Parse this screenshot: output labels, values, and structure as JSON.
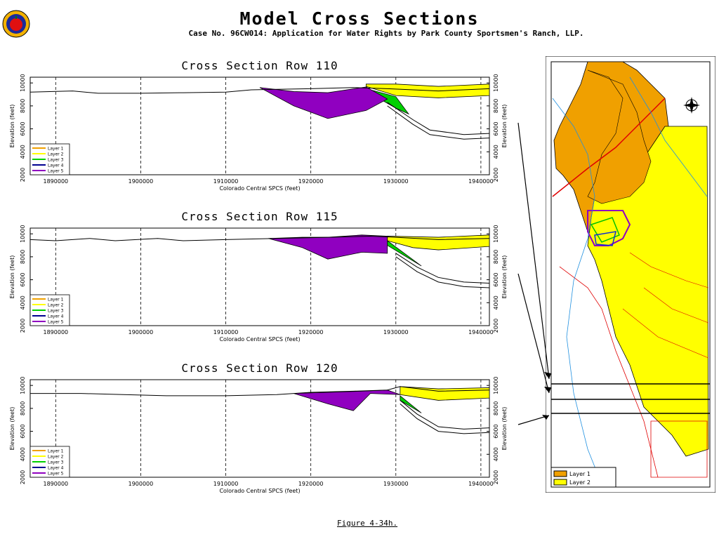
{
  "page": {
    "title": "Model Cross Sections",
    "subtitle": "Case No. 96CW014: Application for Water Rights by Park County Sportsmen's Ranch, LLP.",
    "caption": "Figure 4-34h."
  },
  "chart_data": [
    {
      "type": "area",
      "title": "Cross Section Row 110",
      "xlabel": "Colorado Central SPCS (feet)",
      "ylabel": "Elevation (feet)",
      "ylabel_right": "Elevation (feet)",
      "xlim": [
        1887000,
        1941000
      ],
      "ylim": [
        2000,
        10500
      ],
      "x_ticks": [
        1890000,
        1900000,
        1910000,
        1920000,
        1930000,
        1940000
      ],
      "y_ticks": [
        2000,
        4000,
        6000,
        8000,
        10000
      ],
      "legend": [
        "Layer 1",
        "Layer 2",
        "Layer 3",
        "Layer 4",
        "Layer 5"
      ],
      "legend_position": "lower-left",
      "colors": {
        "Layer 1": "#f0a000",
        "Layer 2": "#ffff00",
        "Layer 3": "#00d000",
        "Layer 4": "#000090",
        "Layer 5": "#9000c0"
      },
      "surface": [
        [
          1887000,
          9200
        ],
        [
          1892000,
          9300
        ],
        [
          1895000,
          9100
        ],
        [
          1900000,
          9100
        ],
        [
          1905000,
          9150
        ],
        [
          1910000,
          9200
        ],
        [
          1913000,
          9400
        ],
        [
          1920000,
          9500
        ],
        [
          1925000,
          9600
        ],
        [
          1929000,
          9500
        ],
        [
          1935000,
          9300
        ],
        [
          1941000,
          9500
        ]
      ],
      "layer5": {
        "top": [
          [
            1914000,
            9600
          ],
          [
            1918000,
            9250
          ],
          [
            1922000,
            9150
          ],
          [
            1926500,
            9650
          ],
          [
            1929000,
            8600
          ]
        ],
        "bottom": [
          [
            1914000,
            9600
          ],
          [
            1918000,
            8000
          ],
          [
            1922000,
            6900
          ],
          [
            1926500,
            7600
          ],
          [
            1929000,
            8600
          ]
        ]
      },
      "layer2": {
        "top": [
          [
            1926500,
            9900
          ],
          [
            1930000,
            9900
          ],
          [
            1935000,
            9700
          ],
          [
            1941000,
            9900
          ]
        ],
        "bottom": [
          [
            1926500,
            9700
          ],
          [
            1930000,
            8900
          ],
          [
            1935000,
            8700
          ],
          [
            1941000,
            8900
          ]
        ]
      },
      "layer3": {
        "top": [
          [
            1926500,
            9500
          ],
          [
            1930000,
            8800
          ],
          [
            1931500,
            7300
          ]
        ],
        "bottom": [
          [
            1926500,
            9300
          ],
          [
            1930000,
            7800
          ],
          [
            1931500,
            7300
          ]
        ]
      },
      "base": [
        [
          1929000,
          8300
        ],
        [
          1932000,
          6800
        ],
        [
          1934000,
          5900
        ],
        [
          1938000,
          5500
        ],
        [
          1941000,
          5600
        ]
      ],
      "base2": [
        [
          1929000,
          8000
        ],
        [
          1932000,
          6400
        ],
        [
          1934000,
          5500
        ],
        [
          1938000,
          5100
        ],
        [
          1941000,
          5200
        ]
      ]
    },
    {
      "type": "area",
      "title": "Cross Section Row 115",
      "xlabel": "Colorado Central SPCS (feet)",
      "ylabel": "Elevation (feet)",
      "ylabel_right": "Elevation (feet)",
      "xlim": [
        1887000,
        1941000
      ],
      "ylim": [
        2000,
        10500
      ],
      "x_ticks": [
        1890000,
        1900000,
        1910000,
        1920000,
        1930000,
        1940000
      ],
      "y_ticks": [
        2000,
        4000,
        6000,
        8000,
        10000
      ],
      "legend": [
        "Layer 1",
        "Layer 2",
        "Layer 3",
        "Layer 4",
        "Layer 5"
      ],
      "legend_position": "lower-left",
      "colors": {
        "Layer 1": "#f0a000",
        "Layer 2": "#ffff00",
        "Layer 3": "#00d000",
        "Layer 4": "#000090",
        "Layer 5": "#9000c0"
      },
      "surface": [
        [
          1887000,
          9500
        ],
        [
          1890000,
          9400
        ],
        [
          1894000,
          9600
        ],
        [
          1897000,
          9400
        ],
        [
          1902000,
          9600
        ],
        [
          1905000,
          9400
        ],
        [
          1910000,
          9500
        ],
        [
          1916000,
          9600
        ],
        [
          1922000,
          9700
        ],
        [
          1927000,
          9800
        ],
        [
          1930000,
          9700
        ],
        [
          1935000,
          9500
        ],
        [
          1941000,
          9600
        ]
      ],
      "layer5": {
        "top": [
          [
            1915000,
            9600
          ],
          [
            1919000,
            9700
          ],
          [
            1922000,
            9700
          ],
          [
            1926000,
            9900
          ],
          [
            1929000,
            9800
          ]
        ],
        "bottom": [
          [
            1915000,
            9600
          ],
          [
            1919000,
            8800
          ],
          [
            1922000,
            7800
          ],
          [
            1926000,
            8400
          ],
          [
            1929000,
            8300
          ]
        ]
      },
      "layer2": {
        "top": [
          [
            1929000,
            9800
          ],
          [
            1935000,
            9700
          ],
          [
            1941000,
            9900
          ]
        ],
        "bottom": [
          [
            1929000,
            9400
          ],
          [
            1932000,
            8800
          ],
          [
            1935000,
            8600
          ],
          [
            1941000,
            8900
          ]
        ]
      },
      "layer3": {
        "top": [
          [
            1929000,
            9400
          ],
          [
            1933000,
            7200
          ]
        ],
        "bottom": [
          [
            1929000,
            9000
          ],
          [
            1933000,
            7200
          ]
        ]
      },
      "base": [
        [
          1930000,
          8300
        ],
        [
          1932500,
          7100
        ],
        [
          1935000,
          6200
        ],
        [
          1938000,
          5800
        ],
        [
          1941000,
          5700
        ]
      ],
      "base2": [
        [
          1930000,
          8000
        ],
        [
          1932500,
          6700
        ],
        [
          1935000,
          5800
        ],
        [
          1938000,
          5400
        ],
        [
          1941000,
          5300
        ]
      ]
    },
    {
      "type": "area",
      "title": "Cross Section Row 120",
      "xlabel": "Colorado Central SPCS (feet)",
      "ylabel": "Elevation (feet)",
      "ylabel_right": "Elevation (feet)",
      "xlim": [
        1887000,
        1941000
      ],
      "ylim": [
        2000,
        10500
      ],
      "x_ticks": [
        1890000,
        1900000,
        1910000,
        1920000,
        1930000,
        1940000
      ],
      "y_ticks": [
        2000,
        4000,
        6000,
        8000,
        10000
      ],
      "legend": [
        "Layer 1",
        "Layer 2",
        "Layer 3",
        "Layer 4",
        "Layer 5"
      ],
      "legend_position": "lower-left",
      "colors": {
        "Layer 1": "#f0a000",
        "Layer 2": "#ffff00",
        "Layer 3": "#00d000",
        "Layer 4": "#000090",
        "Layer 5": "#9000c0"
      },
      "surface": [
        [
          1887000,
          9300
        ],
        [
          1893000,
          9300
        ],
        [
          1898000,
          9200
        ],
        [
          1903000,
          9100
        ],
        [
          1910000,
          9100
        ],
        [
          1916000,
          9200
        ],
        [
          1920000,
          9400
        ],
        [
          1925000,
          9500
        ],
        [
          1929000,
          9600
        ],
        [
          1930500,
          9900
        ],
        [
          1935000,
          9500
        ],
        [
          1941000,
          9600
        ]
      ],
      "layer5": {
        "top": [
          [
            1918000,
            9300
          ],
          [
            1922000,
            9400
          ],
          [
            1926000,
            9500
          ],
          [
            1929000,
            9600
          ],
          [
            1930500,
            9200
          ]
        ],
        "bottom": [
          [
            1918000,
            9300
          ],
          [
            1922000,
            8400
          ],
          [
            1925000,
            7800
          ],
          [
            1927000,
            9300
          ],
          [
            1930500,
            9200
          ]
        ]
      },
      "layer2": {
        "top": [
          [
            1930500,
            9900
          ],
          [
            1935000,
            9700
          ],
          [
            1941000,
            9800
          ]
        ],
        "bottom": [
          [
            1930500,
            9200
          ],
          [
            1935000,
            8700
          ],
          [
            1941000,
            8900
          ]
        ]
      },
      "layer3": {
        "top": [
          [
            1930500,
            9100
          ],
          [
            1933000,
            7600
          ]
        ],
        "bottom": [
          [
            1930500,
            8700
          ],
          [
            1933000,
            7600
          ]
        ]
      },
      "base": [
        [
          1930500,
          8700
        ],
        [
          1932500,
          7500
        ],
        [
          1935000,
          6400
        ],
        [
          1938000,
          6200
        ],
        [
          1941000,
          6300
        ]
      ],
      "base2": [
        [
          1930500,
          8400
        ],
        [
          1932500,
          7100
        ],
        [
          1935000,
          6000
        ],
        [
          1938000,
          5800
        ],
        [
          1941000,
          5900
        ]
      ]
    }
  ],
  "map": {
    "legend": [
      "Layer 1",
      "Layer 2"
    ],
    "legend_colors": [
      "#f0a000",
      "#ffff00"
    ]
  }
}
